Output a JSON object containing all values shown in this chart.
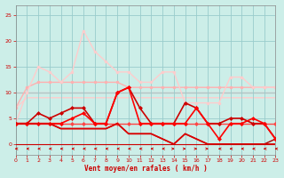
{
  "x": [
    0,
    1,
    2,
    3,
    4,
    5,
    6,
    7,
    8,
    9,
    10,
    11,
    12,
    13,
    14,
    15,
    16,
    17,
    18,
    19,
    20,
    21,
    22,
    23
  ],
  "lines": [
    {
      "y": [
        7,
        11,
        12,
        12,
        12,
        12,
        12,
        12,
        12,
        12,
        11,
        11,
        11,
        11,
        11,
        11,
        11,
        11,
        11,
        11,
        11,
        11,
        11,
        11
      ],
      "color": "#ffb0b0",
      "lw": 1.0,
      "marker": "o",
      "ms": 2.0,
      "zorder": 2
    },
    {
      "y": [
        4,
        10,
        15,
        14,
        12,
        14,
        22,
        18,
        16,
        14,
        14,
        12,
        12,
        14,
        14,
        8,
        8,
        8,
        8,
        13,
        13,
        11,
        11,
        11
      ],
      "color": "#ffcccc",
      "lw": 1.0,
      "marker": "o",
      "ms": 2.0,
      "zorder": 2
    },
    {
      "y": [
        10,
        10,
        10,
        10,
        10,
        10,
        10,
        10,
        10,
        10,
        10,
        10,
        10,
        10,
        10,
        10,
        10,
        10,
        10,
        10,
        10,
        10,
        10,
        10
      ],
      "color": "#ffb0b0",
      "lw": 1.0,
      "marker": null,
      "ms": 0,
      "zorder": 1
    },
    {
      "y": [
        7,
        9,
        9,
        9,
        9,
        9,
        9,
        9,
        9,
        9,
        9,
        9,
        9,
        9,
        9,
        9,
        9,
        9,
        9,
        9,
        9,
        9,
        9,
        9
      ],
      "color": "#ffcccc",
      "lw": 1.0,
      "marker": null,
      "ms": 0,
      "zorder": 1
    },
    {
      "y": [
        4,
        4,
        4,
        4,
        4,
        4,
        4,
        4,
        4,
        4,
        4,
        4,
        4,
        4,
        4,
        4,
        4,
        4,
        4,
        4,
        4,
        4,
        4,
        4
      ],
      "color": "#ff4444",
      "lw": 1.0,
      "marker": "D",
      "ms": 2.0,
      "zorder": 3
    },
    {
      "y": [
        4,
        4,
        6,
        5,
        6,
        7,
        7,
        4,
        4,
        10,
        11,
        7,
        4,
        4,
        4,
        8,
        7,
        4,
        4,
        5,
        5,
        4,
        4,
        1
      ],
      "color": "#cc0000",
      "lw": 1.2,
      "marker": "D",
      "ms": 2.0,
      "zorder": 3
    },
    {
      "y": [
        4,
        4,
        4,
        4,
        4,
        5,
        6,
        4,
        4,
        10,
        11,
        4,
        4,
        4,
        4,
        4,
        7,
        4,
        1,
        4,
        4,
        5,
        4,
        1
      ],
      "color": "#ff0000",
      "lw": 1.2,
      "marker": "D",
      "ms": 2.0,
      "zorder": 3
    },
    {
      "y": [
        4,
        4,
        4,
        4,
        3,
        3,
        3,
        3,
        3,
        4,
        2,
        2,
        2,
        1,
        0,
        2,
        1,
        0,
        0,
        0,
        0,
        0,
        0,
        0
      ],
      "color": "#dd0000",
      "lw": 1.2,
      "marker": null,
      "ms": 0,
      "zorder": 3
    },
    {
      "y": [
        4,
        4,
        4,
        4,
        3,
        3,
        3,
        3,
        3,
        4,
        2,
        2,
        2,
        1,
        0,
        2,
        1,
        0,
        0,
        0,
        0,
        0,
        0,
        1
      ],
      "color": "#aa0000",
      "lw": 1.0,
      "marker": null,
      "ms": 0,
      "zorder": 2
    }
  ],
  "arrow_directions": [
    -1,
    -1,
    -1,
    -1,
    -1,
    -1,
    -1,
    -1,
    -1,
    -1,
    -1,
    -1,
    -1,
    -1,
    1,
    1,
    1,
    1,
    -1,
    -1,
    -1,
    -1,
    -1,
    -1
  ],
  "xlabel": "Vent moyen/en rafales ( km/h )",
  "xlim": [
    0,
    23
  ],
  "ylim": [
    -2,
    27
  ],
  "yticks": [
    0,
    5,
    10,
    15,
    20,
    25
  ],
  "xticks": [
    0,
    1,
    2,
    3,
    4,
    5,
    6,
    7,
    8,
    9,
    10,
    11,
    12,
    13,
    14,
    15,
    16,
    17,
    18,
    19,
    20,
    21,
    22,
    23
  ],
  "bg_color": "#cceee8",
  "grid_color": "#99cccc",
  "tick_color": "#cc0000",
  "arrow_color": "#cc0000",
  "xlabel_color": "#cc0000"
}
